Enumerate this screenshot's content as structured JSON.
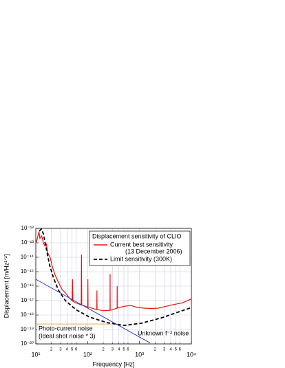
{
  "chart_data": {
    "type": "line",
    "xlabel": "Frequency [Hz]",
    "ylabel": "Displacement [m/Hz¹ᐟ²]",
    "xscale": "log",
    "yscale": "log",
    "xlim": [
      10,
      10000
    ],
    "ylim": [
      1e-20,
      1e-12
    ],
    "xticks": [
      {
        "value": 10,
        "label": "10¹"
      },
      {
        "value": 20,
        "label": "2"
      },
      {
        "value": 30,
        "label": "3"
      },
      {
        "value": 40,
        "label": "4"
      },
      {
        "value": 50,
        "label": "5"
      },
      {
        "value": 60,
        "label": "6"
      },
      {
        "value": 100,
        "label": "10²"
      },
      {
        "value": 200,
        "label": "2"
      },
      {
        "value": 300,
        "label": "3"
      },
      {
        "value": 400,
        "label": "4"
      },
      {
        "value": 500,
        "label": "5"
      },
      {
        "value": 600,
        "label": "6"
      },
      {
        "value": 1000,
        "label": "10³"
      },
      {
        "value": 2000,
        "label": "2"
      },
      {
        "value": 3000,
        "label": "3"
      },
      {
        "value": 4000,
        "label": "4"
      },
      {
        "value": 5000,
        "label": "5"
      },
      {
        "value": 6000,
        "label": "6"
      },
      {
        "value": 10000,
        "label": "10⁴"
      }
    ],
    "yticks": [
      {
        "value": 1e-12,
        "label": "10⁻¹²"
      },
      {
        "value": 1e-13,
        "label": "10⁻¹³"
      },
      {
        "value": 1e-14,
        "label": "10⁻¹⁴"
      },
      {
        "value": 1e-15,
        "label": "10⁻¹⁵"
      },
      {
        "value": 1e-16,
        "label": "10⁻¹⁶"
      },
      {
        "value": 1e-17,
        "label": "10⁻¹⁷"
      },
      {
        "value": 1e-18,
        "label": "10⁻¹⁸"
      },
      {
        "value": 1e-19,
        "label": "10⁻¹⁹"
      },
      {
        "value": 1e-20,
        "label": "10⁻²⁰"
      }
    ],
    "grid": true,
    "legend_title": "Displacement sensitivity of CLIO",
    "legend": "upper right",
    "series": [
      {
        "name": "Current best sensitivity",
        "note": "(13 December 2006)",
        "color": "#ee1111",
        "dash": false,
        "in_legend": true,
        "x": [
          10.3,
          11,
          11.5,
          12,
          13,
          14,
          15,
          16,
          17,
          19,
          21,
          23.5,
          27,
          32,
          37,
          43,
          50,
          51,
          52,
          59,
          75,
          76,
          77,
          100,
          101,
          102,
          150,
          151,
          152,
          200,
          270,
          271,
          272,
          370,
          371,
          372,
          500,
          680,
          920,
          1250,
          1700,
          2300,
          4200,
          6700,
          10000
        ],
        "values": [
          1.1e-13,
          3e-13,
          6e-13,
          2e-13,
          3e-13,
          1e-13,
          6e-14,
          8e-14,
          2e-14,
          9e-15,
          2e-15,
          6e-16,
          2e-16,
          6e-17,
          3.5e-17,
          1.7e-17,
          1e-17,
          3e-16,
          9e-18,
          7e-18,
          5e-18,
          1.5e-14,
          5e-18,
          3.5e-18,
          3e-16,
          3.5e-18,
          2.4e-18,
          5e-17,
          2.4e-18,
          2e-18,
          2.1e-18,
          7e-16,
          2.1e-18,
          3e-18,
          1e-16,
          3e-18,
          4e-18,
          4.6e-18,
          3.3e-18,
          3e-18,
          2.8e-18,
          3e-18,
          5e-18,
          7e-18,
          1.3e-17
        ]
      },
      {
        "name": "Limit sensitivity (300K)",
        "color": "#000000",
        "dash": true,
        "in_legend": true,
        "x": [
          11.65,
          12.8,
          14,
          15.8,
          18.4,
          22.2,
          27.4,
          37.2,
          58.9,
          108,
          233,
          500,
          1080,
          2700,
          10000
        ],
        "values": [
          6.5e-13,
          9e-13,
          4.2e-13,
          4.6e-14,
          3e-15,
          3.3e-16,
          5.2e-17,
          1e-17,
          2.4e-18,
          7.3e-19,
          3e-19,
          1.9e-19,
          2.7e-19,
          6.5e-19,
          3.3e-18
        ]
      },
      {
        "name": "Unknown f⁻² noise",
        "color": "#2233cc",
        "dash": false,
        "in_legend": false,
        "x": [
          10,
          1600
        ],
        "values": [
          3e-16,
          1.17e-20
        ]
      },
      {
        "name": [
          "Photo-current noise",
          "(Ideal shot noise * 3)"
        ],
        "color": "#e8a040",
        "dash": false,
        "in_legend": false,
        "x": [
          10,
          300
        ],
        "values": [
          2.4e-19,
          2.4e-19
        ]
      }
    ]
  }
}
